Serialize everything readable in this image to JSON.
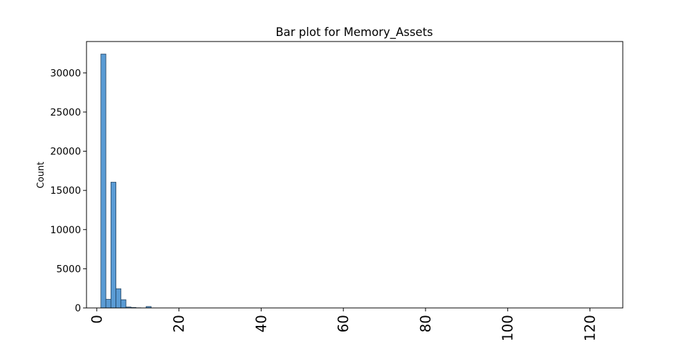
{
  "chart_data": {
    "type": "bar",
    "title": "Bar plot for Memory_Assets",
    "xlabel": "",
    "ylabel": "Count",
    "xlim": [
      -2.5,
      128
    ],
    "ylim": [
      0,
      34000
    ],
    "xticks": [
      0,
      20,
      40,
      60,
      80,
      100,
      120
    ],
    "xtick_labels": [
      "0",
      "20",
      "40",
      "60",
      "80",
      "100",
      "120"
    ],
    "yticks": [
      0,
      5000,
      10000,
      15000,
      20000,
      25000,
      30000
    ],
    "ytick_labels": [
      "0",
      "5000",
      "10000",
      "15000",
      "20000",
      "25000",
      "30000"
    ],
    "bin_width": 1.22,
    "bins": [
      {
        "x0": 1.0,
        "value": 32400
      },
      {
        "x0": 2.22,
        "value": 1100
      },
      {
        "x0": 3.44,
        "value": 16050
      },
      {
        "x0": 4.66,
        "value": 2450
      },
      {
        "x0": 5.88,
        "value": 1050
      },
      {
        "x0": 7.1,
        "value": 120
      },
      {
        "x0": 8.32,
        "value": 60
      },
      {
        "x0": 9.54,
        "value": 20
      },
      {
        "x0": 12.0,
        "value": 180
      },
      {
        "x0": 13.22,
        "value": 10
      }
    ],
    "colors": {
      "bar_fill": "#5a9bd4",
      "bar_edge": "#1f3f5c"
    }
  }
}
